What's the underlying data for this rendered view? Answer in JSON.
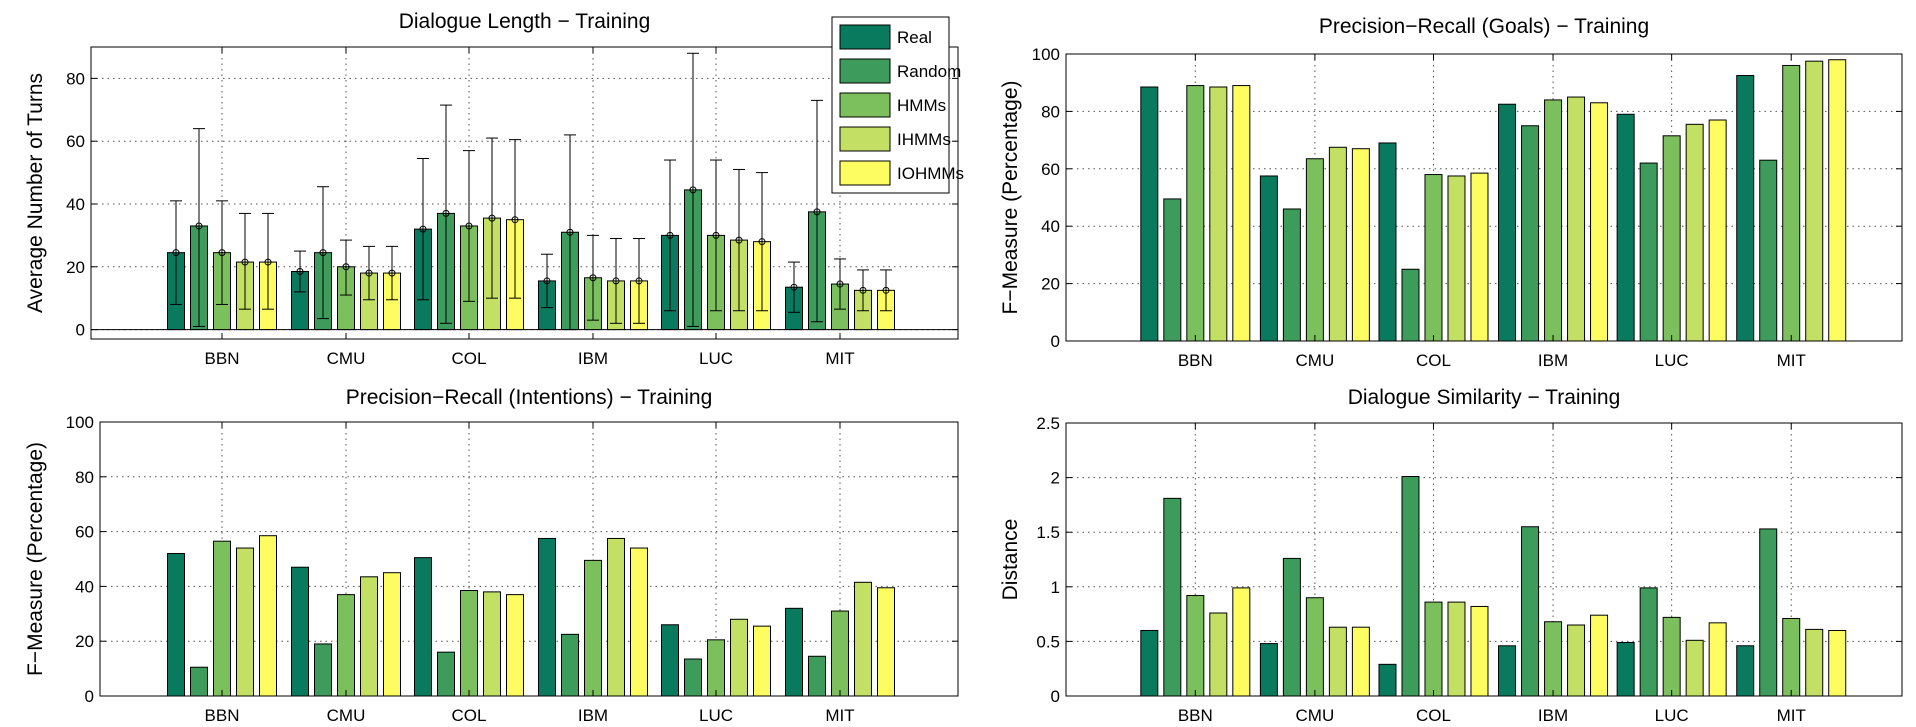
{
  "chart_data": [
    {
      "id": "dialogue-length",
      "type": "bar",
      "title": "Dialogue Length − Training",
      "xlabel": "",
      "ylabel": "Average Number of Turns",
      "ylim": [
        -3,
        90
      ],
      "yticks": [
        0,
        20,
        40,
        60,
        80
      ],
      "grid": true,
      "categories": [
        "BBN",
        "CMU",
        "COL",
        "IBM",
        "LUC",
        "MIT"
      ],
      "series": [
        {
          "name": "Real",
          "values": [
            24.5,
            18.5,
            32,
            15.5,
            30,
            13.5
          ],
          "err_low": [
            8,
            12,
            9.5,
            7,
            6,
            5.5
          ],
          "err_high": [
            41,
            25,
            54.5,
            24,
            54,
            21.5
          ]
        },
        {
          "name": "Random",
          "values": [
            33,
            24.5,
            37,
            31,
            44.5,
            37.5
          ],
          "err_low": [
            1,
            3.5,
            2,
            0,
            1,
            2.5
          ],
          "err_high": [
            64,
            45.5,
            71.5,
            62,
            88,
            73
          ]
        },
        {
          "name": "HMMs",
          "values": [
            24.5,
            20,
            33,
            16.5,
            30,
            14.5
          ],
          "err_low": [
            8,
            11,
            9,
            3,
            6,
            6.5
          ],
          "err_high": [
            41,
            28.5,
            57,
            30,
            54,
            22.5
          ]
        },
        {
          "name": "IHMMs",
          "values": [
            21.5,
            18,
            35.5,
            15.5,
            28.5,
            12.5
          ],
          "err_low": [
            6.5,
            9.5,
            10,
            2,
            6,
            6
          ],
          "err_high": [
            37,
            26.5,
            61,
            29,
            51,
            19
          ]
        },
        {
          "name": "IOHMMs",
          "values": [
            21.5,
            18,
            35,
            15.5,
            28,
            12.5
          ],
          "err_low": [
            6.5,
            9.5,
            10,
            2,
            6,
            6
          ],
          "err_high": [
            37,
            26.5,
            60.5,
            29,
            50,
            19
          ]
        }
      ],
      "legend": {
        "placement": "top-right"
      }
    },
    {
      "id": "pr-goals",
      "type": "bar",
      "title": "Precision−Recall (Goals) − Training",
      "xlabel": "",
      "ylabel": "F−Measure (Percentage)",
      "ylim": [
        0,
        100
      ],
      "yticks": [
        0,
        20,
        40,
        60,
        80,
        100
      ],
      "grid": true,
      "categories": [
        "BBN",
        "CMU",
        "COL",
        "IBM",
        "LUC",
        "MIT"
      ],
      "series": [
        {
          "name": "Real",
          "values": [
            88.5,
            57.5,
            69,
            82.5,
            79,
            92.5
          ]
        },
        {
          "name": "Random",
          "values": [
            49.5,
            46,
            25,
            75,
            62,
            63
          ]
        },
        {
          "name": "HMMs",
          "values": [
            89,
            63.5,
            58,
            84,
            71.5,
            96
          ]
        },
        {
          "name": "IHMMs",
          "values": [
            88.5,
            67.5,
            57.5,
            85,
            75.5,
            97.5
          ]
        },
        {
          "name": "IOHMMs",
          "values": [
            89,
            67,
            58.5,
            83,
            77,
            98
          ]
        }
      ]
    },
    {
      "id": "pr-intentions",
      "type": "bar",
      "title": "Precision−Recall (Intentions) − Training",
      "xlabel": "",
      "ylabel": "F−Measure (Percentage)",
      "ylim": [
        0,
        100
      ],
      "yticks": [
        0,
        20,
        40,
        60,
        80,
        100
      ],
      "grid": true,
      "categories": [
        "BBN",
        "CMU",
        "COL",
        "IBM",
        "LUC",
        "MIT"
      ],
      "series": [
        {
          "name": "Real",
          "values": [
            52,
            47,
            50.5,
            57.5,
            26,
            32
          ]
        },
        {
          "name": "Random",
          "values": [
            10.5,
            19,
            16,
            22.5,
            13.5,
            14.5
          ]
        },
        {
          "name": "HMMs",
          "values": [
            56.5,
            37,
            38.5,
            49.5,
            20.5,
            31
          ]
        },
        {
          "name": "IHMMs",
          "values": [
            54,
            43.5,
            38,
            57.5,
            28,
            41.5
          ]
        },
        {
          "name": "IOHMMs",
          "values": [
            58.5,
            45,
            37,
            54,
            25.5,
            39.5
          ]
        }
      ]
    },
    {
      "id": "dialogue-similarity",
      "type": "bar",
      "title": "Dialogue Similarity − Training",
      "xlabel": "",
      "ylabel": "Distance",
      "ylim": [
        0,
        2.5
      ],
      "yticks": [
        0,
        0.5,
        1,
        1.5,
        2,
        2.5
      ],
      "grid": true,
      "categories": [
        "BBN",
        "CMU",
        "COL",
        "IBM",
        "LUC",
        "MIT"
      ],
      "series": [
        {
          "name": "Real",
          "values": [
            0.6,
            0.48,
            0.29,
            0.46,
            0.49,
            0.46
          ]
        },
        {
          "name": "Random",
          "values": [
            1.81,
            1.26,
            2.01,
            1.55,
            0.99,
            1.53
          ]
        },
        {
          "name": "HMMs",
          "values": [
            0.92,
            0.9,
            0.86,
            0.68,
            0.72,
            0.71
          ]
        },
        {
          "name": "IHMMs",
          "values": [
            0.76,
            0.63,
            0.86,
            0.65,
            0.51,
            0.61
          ]
        },
        {
          "name": "IOHMMs",
          "values": [
            0.99,
            0.63,
            0.82,
            0.74,
            0.67,
            0.6
          ]
        }
      ]
    }
  ],
  "colors": {
    "Real": "#0a7a5e",
    "Random": "#3d9b5b",
    "HMMs": "#7cc05e",
    "IHMMs": "#c3e065",
    "IOHMMs": "#fdfd62"
  }
}
